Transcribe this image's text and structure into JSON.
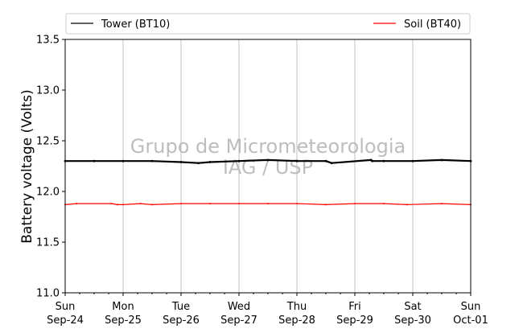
{
  "chart_data": {
    "type": "line",
    "ylabel": "Battery voltage (Volts)",
    "ylim": [
      11.0,
      13.5
    ],
    "y_ticks": [
      "11.0",
      "11.5",
      "12.0",
      "12.5",
      "13.0",
      "13.5"
    ],
    "x_range_days": [
      0,
      7
    ],
    "x_ticks": [
      {
        "day": "Sun",
        "date": "Sep-24"
      },
      {
        "day": "Mon",
        "date": "Sep-25"
      },
      {
        "day": "Tue",
        "date": "Sep-26"
      },
      {
        "day": "Wed",
        "date": "Sep-27"
      },
      {
        "day": "Thu",
        "date": "Sep-28"
      },
      {
        "day": "Fri",
        "date": "Sep-29"
      },
      {
        "day": "Sat",
        "date": "Sep-30"
      },
      {
        "day": "Sun",
        "date": "Oct-01"
      }
    ],
    "grid": "vertical",
    "legend_position": "top (outside plot)",
    "watermark": [
      "Grupo de Micrometeorologia",
      "IAG / USP"
    ],
    "series": [
      {
        "name": "Tower (BT10)",
        "color": "#000000",
        "x": [
          0,
          0.5,
          1,
          1.5,
          2,
          2.3,
          2.5,
          3,
          3.5,
          4,
          4.5,
          4.6,
          5.28,
          5.3,
          5.5,
          6,
          6.5,
          7
        ],
        "y": [
          12.3,
          12.3,
          12.3,
          12.3,
          12.29,
          12.28,
          12.29,
          12.3,
          12.31,
          12.3,
          12.3,
          12.28,
          12.31,
          12.3,
          12.3,
          12.3,
          12.31,
          12.3
        ]
      },
      {
        "name": "Soil (BT40)",
        "color": "#ff0000",
        "x": [
          0,
          0.2,
          0.8,
          0.9,
          1.0,
          1.3,
          1.5,
          2,
          2.5,
          3,
          3.5,
          4,
          4.5,
          5,
          5.5,
          5.9,
          6.5,
          7
        ],
        "y": [
          11.87,
          11.88,
          11.88,
          11.87,
          11.87,
          11.88,
          11.87,
          11.88,
          11.88,
          11.88,
          11.88,
          11.88,
          11.87,
          11.88,
          11.88,
          11.87,
          11.88,
          11.87
        ]
      }
    ]
  }
}
